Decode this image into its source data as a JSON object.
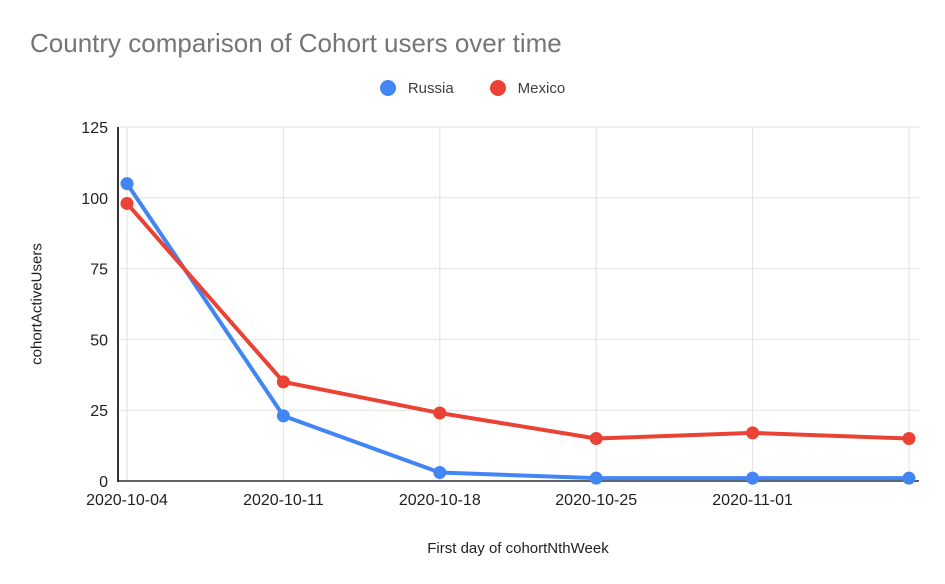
{
  "chart_data": {
    "type": "line",
    "title": "Country comparison of Cohort users over time",
    "xlabel": "First day of cohortNthWeek",
    "ylabel": "cohortActiveUsers",
    "x_tick_labels": [
      "2020-10-04",
      "2020-10-11",
      "2020-10-18",
      "2020-10-25",
      "2020-11-01",
      ""
    ],
    "y_ticks": [
      0,
      25,
      50,
      75,
      100,
      125
    ],
    "ylim": [
      0,
      125
    ],
    "grid": true,
    "legend_position": "top-center",
    "series": [
      {
        "name": "Russia",
        "color": "#4285F4",
        "values": [
          105,
          23,
          3,
          1,
          1,
          1
        ]
      },
      {
        "name": "Mexico",
        "color": "#EA4335",
        "values": [
          98,
          35,
          24,
          15,
          17,
          15
        ]
      }
    ]
  },
  "colors": {
    "title_text": "#757575",
    "tick_text": "#202124",
    "legend_text": "#3c4043",
    "gridline": "#e2e2e2",
    "y_axis_line": "#333333",
    "x_baseline": "#5f6368",
    "background": "#ffffff"
  }
}
